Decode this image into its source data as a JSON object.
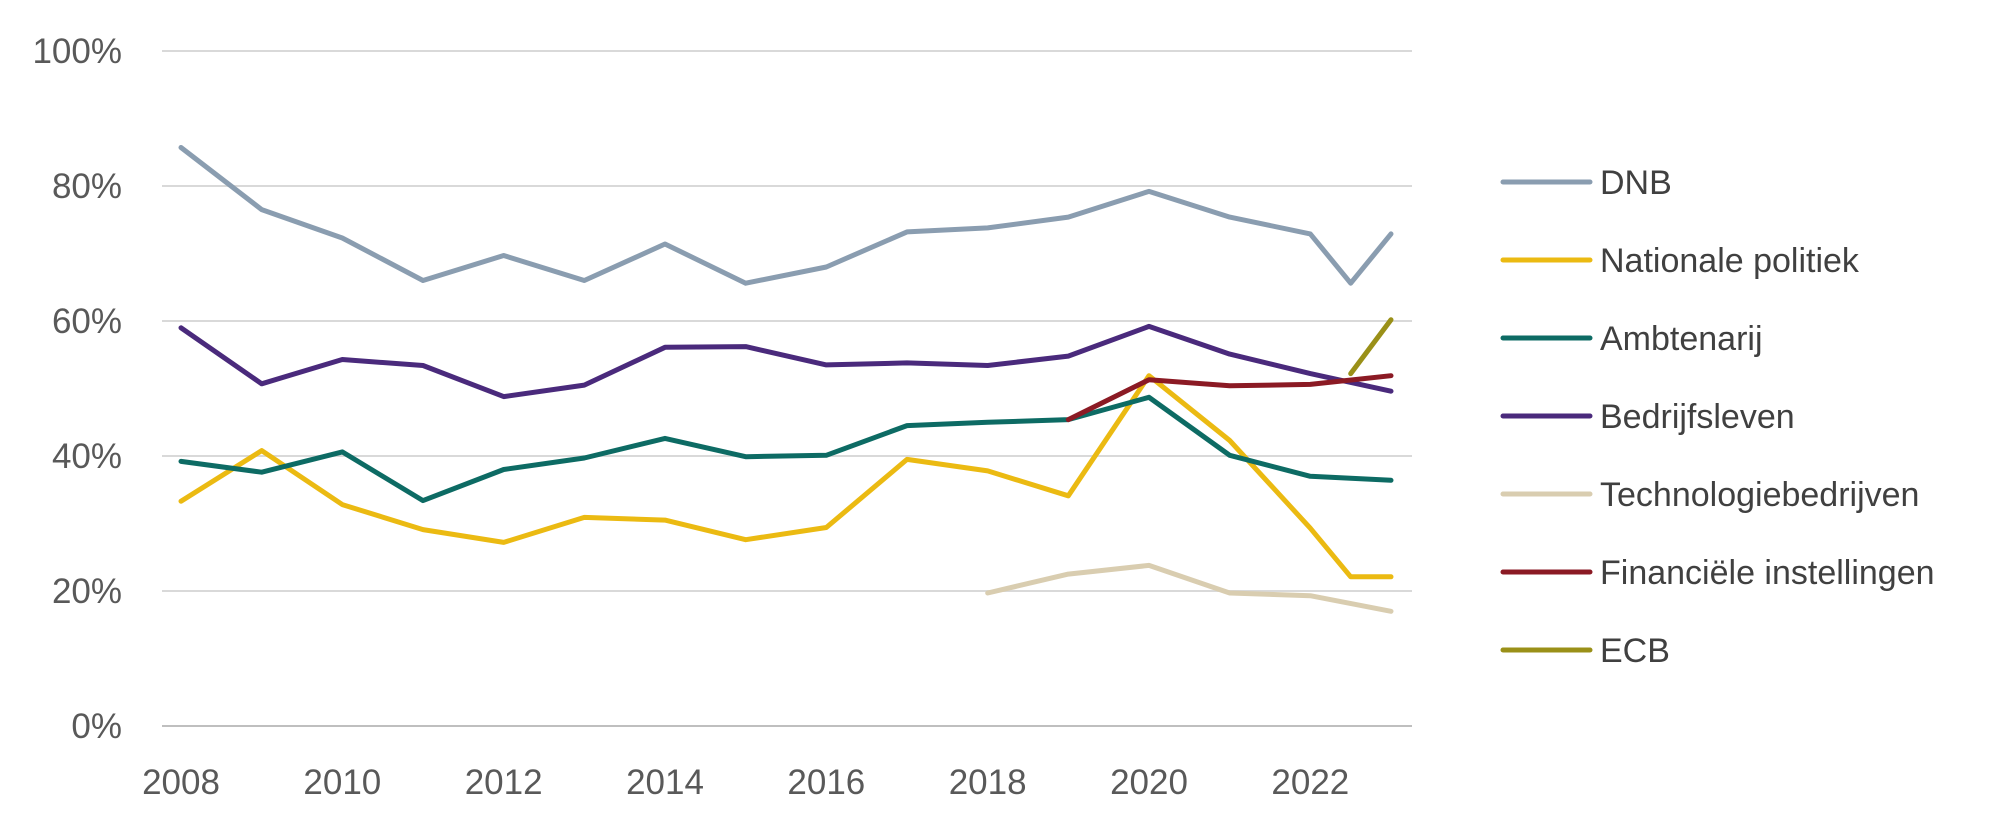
{
  "chart_data": {
    "type": "line",
    "title": "",
    "xlabel": "",
    "ylabel": "",
    "ylim": [
      0,
      100
    ],
    "y_ticks": [
      "0%",
      "20%",
      "40%",
      "60%",
      "80%",
      "100%"
    ],
    "x_ticks": [
      "2008",
      "2010",
      "2012",
      "2014",
      "2016",
      "2018",
      "2020",
      "2022"
    ],
    "grid": "horizontal",
    "legend_position": "right",
    "series": [
      {
        "name": "DNB",
        "color": "#8A9DB0",
        "x": [
          2008,
          2009,
          2010,
          2011,
          2012,
          2013,
          2014,
          2015,
          2016,
          2017,
          2018,
          2019,
          2020,
          2021,
          2022,
          2022.5,
          2023
        ],
        "y": [
          85.7,
          76.5,
          72.3,
          66.0,
          69.7,
          66.0,
          71.4,
          65.6,
          68.0,
          73.2,
          73.8,
          75.4,
          79.2,
          75.4,
          72.9,
          65.6,
          72.9
        ]
      },
      {
        "name": "Nationale politiek",
        "color": "#EBBA12",
        "x": [
          2008,
          2009,
          2010,
          2011,
          2012,
          2013,
          2014,
          2015,
          2016,
          2017,
          2018,
          2019,
          2020,
          2021,
          2022,
          2022.5,
          2023
        ],
        "y": [
          33.3,
          40.8,
          32.8,
          29.1,
          27.2,
          30.9,
          30.5,
          27.6,
          29.4,
          39.5,
          37.8,
          34.1,
          51.9,
          42.3,
          29.3,
          22.1,
          22.1
        ]
      },
      {
        "name": "Ambtenarij",
        "color": "#0D6B64",
        "x": [
          2008,
          2009,
          2010,
          2011,
          2012,
          2013,
          2014,
          2015,
          2016,
          2017,
          2018,
          2019,
          2020,
          2021,
          2022,
          2023
        ],
        "y": [
          39.2,
          37.6,
          40.6,
          33.4,
          38.0,
          39.7,
          42.6,
          39.9,
          40.1,
          44.5,
          45.0,
          45.4,
          48.7,
          40.1,
          37.0,
          36.4
        ]
      },
      {
        "name": "Bedrijfsleven",
        "color": "#4A2A7C",
        "x": [
          2008,
          2009,
          2010,
          2011,
          2012,
          2013,
          2014,
          2015,
          2016,
          2017,
          2018,
          2019,
          2020,
          2021,
          2022,
          2023
        ],
        "y": [
          59.0,
          50.7,
          54.3,
          53.4,
          48.8,
          50.5,
          56.1,
          56.2,
          53.5,
          53.8,
          53.4,
          54.8,
          59.2,
          55.1,
          52.2,
          49.6
        ]
      },
      {
        "name": "Technologiebedrijven",
        "color": "#D9CDB0",
        "x": [
          2018,
          2019,
          2020,
          2021,
          2022,
          2023
        ],
        "y": [
          19.7,
          22.5,
          23.8,
          19.7,
          19.3,
          17.0
        ]
      },
      {
        "name": "Financiële instellingen",
        "color": "#8B1A24",
        "x": [
          2019,
          2020,
          2021,
          2022,
          2023
        ],
        "y": [
          45.4,
          51.3,
          50.4,
          50.6,
          51.9
        ]
      },
      {
        "name": "ECB",
        "color": "#9A9018",
        "x": [
          2022.5,
          2023
        ],
        "y": [
          52.2,
          60.2
        ]
      }
    ]
  }
}
